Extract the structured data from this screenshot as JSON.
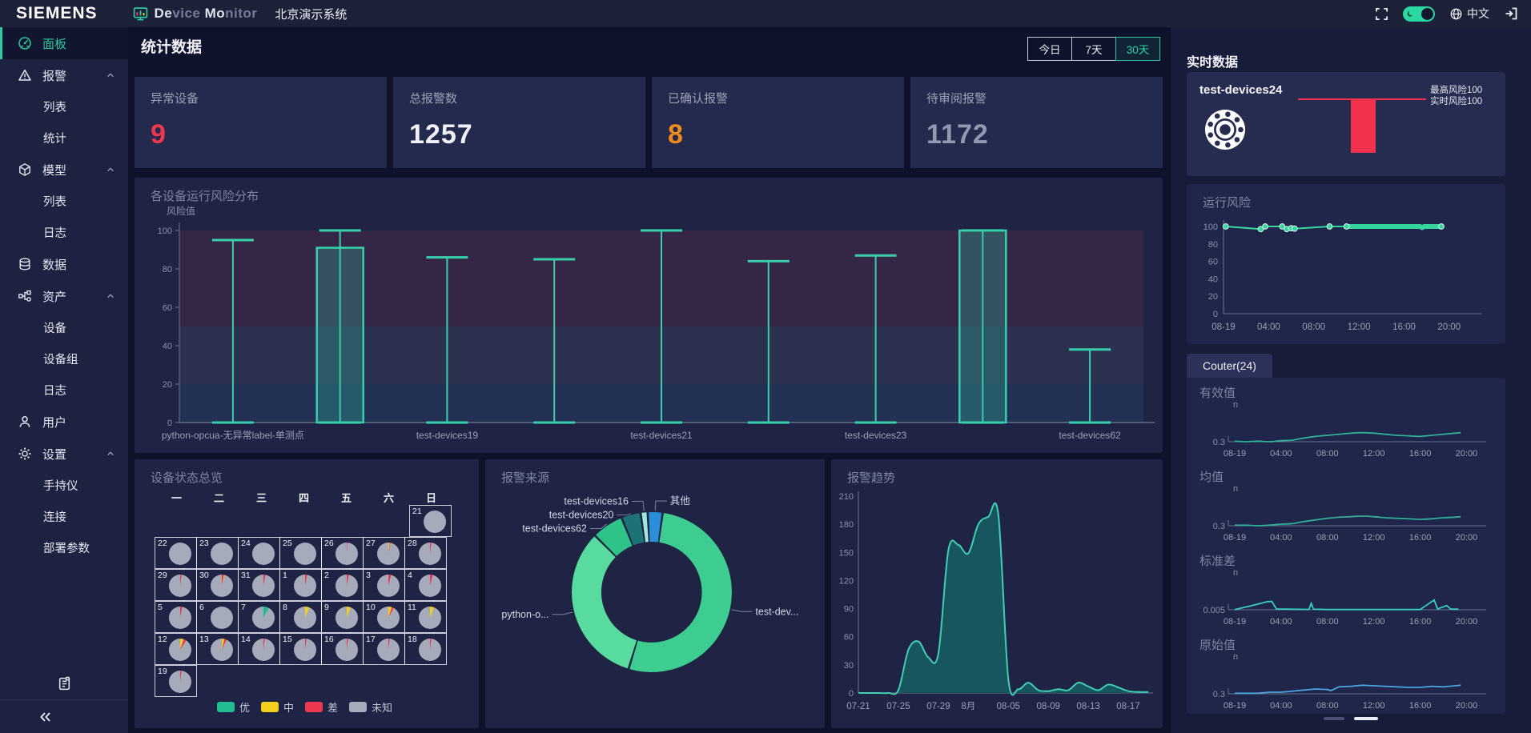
{
  "topbar": {
    "brand": "SIEMENS",
    "device_monitor": {
      "strong_a": "De",
      "dim_a": "vice ",
      "strong_b": "Mo",
      "dim_b": "nitor"
    },
    "system_name": "北京演示系统",
    "language_label": "中文"
  },
  "sidebar": {
    "items": [
      {
        "id": "panel",
        "label": "面板",
        "icon": "gauge-icon",
        "active": true
      },
      {
        "id": "alarm",
        "label": "报警",
        "icon": "alert-icon",
        "expanded": true,
        "children": [
          "列表",
          "统计"
        ]
      },
      {
        "id": "model",
        "label": "模型",
        "icon": "cube-icon",
        "expanded": true,
        "children": [
          "列表",
          "日志"
        ]
      },
      {
        "id": "data",
        "label": "数据",
        "icon": "database-icon"
      },
      {
        "id": "asset",
        "label": "资产",
        "icon": "nodes-icon",
        "expanded": true,
        "children": [
          "设备",
          "设备组",
          "日志"
        ]
      },
      {
        "id": "user",
        "label": "用户",
        "icon": "user-icon"
      },
      {
        "id": "settings",
        "label": "设置",
        "icon": "gear-icon",
        "expanded": true,
        "children": [
          "手持仪",
          "连接",
          "部署参数"
        ]
      }
    ]
  },
  "main": {
    "section_title": "统计数据",
    "range_buttons": [
      {
        "label": "今日",
        "active": false
      },
      {
        "label": "7天",
        "active": false
      },
      {
        "label": "30天",
        "active": true
      }
    ],
    "stat_cards": [
      {
        "label": "异常设备",
        "value": "9",
        "color": "#f0374e"
      },
      {
        "label": "总报警数",
        "value": "1257",
        "color": "#eef1f8"
      },
      {
        "label": "已确认报警",
        "value": "8",
        "color": "#f08c1f"
      },
      {
        "label": "待审阅报警",
        "value": "1172",
        "color": "#9298ad"
      }
    ]
  },
  "right_panel": {
    "heading": "实时数据",
    "device_name": "test-devices24",
    "max_risk_label": "最高风险100",
    "live_risk_label": "实时风险100",
    "risk_color": "#f0324c",
    "tab_label": "Couter(24)"
  },
  "chart_data": [
    {
      "id": "risk-distribution",
      "type": "boxplot",
      "title": "各设备运行风险分布",
      "ylabel": "风险值",
      "ylim": [
        0,
        100
      ],
      "yticks": [
        0,
        20,
        40,
        60,
        80,
        100
      ],
      "categories": [
        "python-opcua-无异常label-单测点",
        "",
        "test-devices19",
        "",
        "test-devices21",
        "",
        "test-devices23",
        "",
        "test-devices62"
      ],
      "items": [
        {
          "max": 95,
          "body": [
            0,
            0
          ]
        },
        {
          "max": 100,
          "body": [
            0,
            91
          ]
        },
        {
          "max": 86,
          "body": [
            0,
            0
          ]
        },
        {
          "max": 85,
          "body": [
            0,
            0
          ]
        },
        {
          "max": 100,
          "body": [
            0,
            0
          ]
        },
        {
          "max": 84,
          "body": [
            0,
            0
          ]
        },
        {
          "max": 87,
          "body": [
            0,
            0
          ]
        },
        {
          "max": 100,
          "body": [
            0,
            100
          ]
        },
        {
          "max": 38,
          "body": [
            0,
            0
          ]
        }
      ],
      "bands": [
        {
          "from": 50,
          "to": 100,
          "color": "rgba(226,56,82,0.12)"
        },
        {
          "from": 20,
          "to": 50,
          "color": "rgba(168,168,190,0.10)"
        },
        {
          "from": 0,
          "to": 20,
          "color": "rgba(60,140,190,0.13)"
        }
      ],
      "color": "#38d0ac"
    },
    {
      "id": "device-status-calendar",
      "type": "calendar-pie",
      "title": "设备状态总览",
      "weekdays": [
        "一",
        "二",
        "三",
        "四",
        "五",
        "六",
        "日"
      ],
      "legend": [
        {
          "label": "优",
          "color": "#1fbf92"
        },
        {
          "label": "中",
          "color": "#f2cf1d"
        },
        {
          "label": "差",
          "color": "#ef3850"
        },
        {
          "label": "未知",
          "color": "#a6abbc"
        }
      ],
      "weeks": [
        [
          null,
          null,
          null,
          null,
          null,
          null,
          {
            "day": 21,
            "slices": []
          }
        ],
        [
          {
            "day": 22,
            "slices": []
          },
          {
            "day": 23,
            "slices": []
          },
          {
            "day": 24,
            "slices": []
          },
          {
            "day": 25,
            "slices": []
          },
          {
            "day": 26,
            "slices": [
              [
                "差",
                1
              ]
            ]
          },
          {
            "day": 27,
            "slices": [
              [
                "中",
                2
              ],
              [
                "差",
                1
              ]
            ]
          },
          {
            "day": 28,
            "slices": [
              [
                "差",
                2
              ]
            ]
          }
        ],
        [
          {
            "day": 29,
            "slices": [
              [
                "差",
                2
              ]
            ]
          },
          {
            "day": 30,
            "slices": [
              [
                "差",
                3
              ],
              [
                "中",
                1
              ]
            ]
          },
          {
            "day": 31,
            "slices": [
              [
                "差",
                3
              ]
            ]
          },
          {
            "day": 1,
            "slices": [
              [
                "差",
                3
              ]
            ]
          },
          {
            "day": 2,
            "slices": [
              [
                "差",
                3
              ]
            ]
          },
          {
            "day": 3,
            "slices": [
              [
                "差",
                4
              ]
            ]
          },
          {
            "day": 4,
            "slices": [
              [
                "差",
                4
              ]
            ]
          }
        ],
        [
          {
            "day": 5,
            "slices": [
              [
                "差",
                3
              ]
            ]
          },
          {
            "day": 6,
            "slices": []
          },
          {
            "day": 7,
            "slices": [
              [
                "优",
                8
              ]
            ]
          },
          {
            "day": 8,
            "slices": [
              [
                "中",
                6
              ]
            ]
          },
          {
            "day": 9,
            "slices": [
              [
                "中",
                6
              ]
            ]
          },
          {
            "day": 10,
            "slices": [
              [
                "中",
                5
              ],
              [
                "差",
                3
              ]
            ]
          },
          {
            "day": 11,
            "slices": [
              [
                "中",
                6
              ]
            ]
          }
        ],
        [
          {
            "day": 12,
            "slices": [
              [
                "中",
                5
              ],
              [
                "差",
                4
              ]
            ]
          },
          {
            "day": 13,
            "slices": [
              [
                "中",
                4
              ],
              [
                "差",
                3
              ]
            ]
          },
          {
            "day": 14,
            "slices": [
              [
                "差",
                2
              ]
            ]
          },
          {
            "day": 15,
            "slices": [
              [
                "差",
                2
              ]
            ]
          },
          {
            "day": 16,
            "slices": [
              [
                "差",
                2
              ]
            ]
          },
          {
            "day": 17,
            "slices": [
              [
                "差",
                2
              ]
            ]
          },
          {
            "day": 18,
            "slices": [
              [
                "差",
                2
              ]
            ]
          }
        ],
        [
          {
            "day": 19,
            "slices": [
              [
                "差",
                2
              ]
            ]
          },
          null,
          null,
          null,
          null,
          null,
          null
        ]
      ]
    },
    {
      "id": "alarm-source",
      "type": "pie",
      "donut": true,
      "start_angle": -93,
      "title": "报警来源",
      "slices": [
        {
          "label": "其他",
          "value": 3,
          "color": "#2b8ed8"
        },
        {
          "label": "test-dev...",
          "value": 52.5,
          "color": "#3dcd90"
        },
        {
          "label": "python-o...",
          "value": 32.8,
          "color": "#57db9e"
        },
        {
          "label": "test-devices62",
          "value": 6.4,
          "color": "#2fc487"
        },
        {
          "label": "test-devices20",
          "value": 3.9,
          "color": "#1b7376"
        },
        {
          "label": "test-devices16",
          "value": 1.4,
          "color": "#9fe8da"
        }
      ]
    },
    {
      "id": "alarm-trend",
      "type": "area",
      "title": "报警趋势",
      "ylim": [
        0,
        210
      ],
      "yticks": [
        0,
        30,
        60,
        90,
        120,
        150,
        180,
        210
      ],
      "x_labels": [
        {
          "label": "07-21",
          "day": 0
        },
        {
          "label": "07-25",
          "day": 4
        },
        {
          "label": "07-29",
          "day": 8
        },
        {
          "label": "8月",
          "day": 11
        },
        {
          "label": "08-05",
          "day": 15
        },
        {
          "label": "08-09",
          "day": 19
        },
        {
          "label": "08-13",
          "day": 23
        },
        {
          "label": "08-17",
          "day": 27
        }
      ],
      "values": [
        0,
        0,
        0,
        0,
        3,
        46,
        55,
        38,
        42,
        152,
        158,
        149,
        180,
        188,
        190,
        15,
        4,
        11,
        3,
        2,
        4,
        3,
        11,
        7,
        3,
        9,
        6,
        2,
        1,
        1
      ],
      "line_color": "#3fd0b4",
      "fill_color": "#17565f"
    },
    {
      "id": "realtime-risk",
      "type": "line",
      "title": "运行风险",
      "ylim": [
        0,
        100
      ],
      "yticks": [
        0,
        20,
        40,
        60,
        80,
        100
      ],
      "x_labels": [
        {
          "label": "08-19",
          "h": 0
        },
        {
          "label": "04:00",
          "h": 4
        },
        {
          "label": "08:00",
          "h": 8
        },
        {
          "label": "12:00",
          "h": 12
        },
        {
          "label": "16:00",
          "h": 16
        },
        {
          "label": "20:00",
          "h": 20
        }
      ],
      "points": [
        [
          0.2,
          100
        ],
        [
          3.3,
          97
        ],
        [
          3.7,
          100
        ],
        [
          5.2,
          100
        ],
        [
          5.6,
          97
        ],
        [
          6.0,
          98
        ],
        [
          6.3,
          97.5
        ],
        [
          9.4,
          100
        ],
        [
          10.9,
          100
        ],
        [
          17.4,
          100
        ],
        [
          17.6,
          98.7
        ],
        [
          17.8,
          100
        ],
        [
          19.3,
          100
        ]
      ],
      "dense_segment": [
        10.9,
        19.3
      ],
      "color": "#35d69e"
    },
    {
      "id": "metric-minis",
      "type": "line-group",
      "x_labels": [
        {
          "label": "08-19",
          "h": 0
        },
        {
          "label": "04:00",
          "h": 4
        },
        {
          "label": "08:00",
          "h": 8
        },
        {
          "label": "12:00",
          "h": 12
        },
        {
          "label": "16:00",
          "h": 16
        },
        {
          "label": "20:00",
          "h": 20
        }
      ],
      "charts": [
        {
          "title": "有效值",
          "ylabel": "n",
          "ytick": "0.3",
          "ymin": 0.3,
          "ymax": 0.9,
          "smooth": true,
          "color": "#2fae9b",
          "points": [
            [
              0,
              0.31
            ],
            [
              1,
              0.3
            ],
            [
              2,
              0.31
            ],
            [
              3,
              0.3
            ],
            [
              4,
              0.32
            ],
            [
              5,
              0.33
            ],
            [
              6,
              0.37
            ],
            [
              7,
              0.4
            ],
            [
              8,
              0.42
            ],
            [
              9,
              0.44
            ],
            [
              10,
              0.46
            ],
            [
              11,
              0.47
            ],
            [
              12,
              0.46
            ],
            [
              13,
              0.44
            ],
            [
              14,
              0.42
            ],
            [
              15,
              0.41
            ],
            [
              16,
              0.4
            ],
            [
              17,
              0.42
            ],
            [
              18,
              0.44
            ],
            [
              19,
              0.46
            ],
            [
              19.5,
              0.47
            ]
          ]
        },
        {
          "title": "均值",
          "ylabel": "n",
          "ytick": "0.3",
          "ymin": 0.3,
          "ymax": 0.9,
          "smooth": true,
          "color": "#2fae9b",
          "points": [
            [
              0,
              0.31
            ],
            [
              1,
              0.31
            ],
            [
              2,
              0.3
            ],
            [
              3,
              0.31
            ],
            [
              4,
              0.33
            ],
            [
              5,
              0.34
            ],
            [
              6,
              0.38
            ],
            [
              7,
              0.41
            ],
            [
              8,
              0.44
            ],
            [
              9,
              0.46
            ],
            [
              10,
              0.47
            ],
            [
              11,
              0.48
            ],
            [
              12,
              0.47
            ],
            [
              13,
              0.45
            ],
            [
              14,
              0.44
            ],
            [
              15,
              0.43
            ],
            [
              16,
              0.42
            ],
            [
              17,
              0.43
            ],
            [
              18,
              0.45
            ],
            [
              19,
              0.46
            ],
            [
              19.5,
              0.47
            ]
          ]
        },
        {
          "title": "标准差",
          "ylabel": "n",
          "ytick": "0.005",
          "ymin": 0.005,
          "ymax": 0.12,
          "smooth": false,
          "color": "#35d0c0",
          "points": [
            [
              0,
              0.006
            ],
            [
              1.5,
              0.02
            ],
            [
              2.8,
              0.034
            ],
            [
              3.2,
              0.035
            ],
            [
              3.6,
              0.008
            ],
            [
              5,
              0.007
            ],
            [
              6.4,
              0.006
            ],
            [
              6.6,
              0.028
            ],
            [
              6.8,
              0.007
            ],
            [
              8,
              0.006
            ],
            [
              10,
              0.006
            ],
            [
              12,
              0.006
            ],
            [
              14,
              0.006
            ],
            [
              16,
              0.006
            ],
            [
              17.2,
              0.04
            ],
            [
              17.5,
              0.008
            ],
            [
              18.3,
              0.02
            ],
            [
              18.6,
              0.008
            ],
            [
              19.3,
              0.007
            ]
          ]
        },
        {
          "title": "原始值",
          "ylabel": "n",
          "ytick": "0.3",
          "ymin": 0.3,
          "ymax": 0.9,
          "smooth": false,
          "color": "#4aa2dd",
          "points": [
            [
              0,
              0.31
            ],
            [
              2,
              0.31
            ],
            [
              3,
              0.33
            ],
            [
              4,
              0.33
            ],
            [
              5,
              0.35
            ],
            [
              6,
              0.37
            ],
            [
              7,
              0.39
            ],
            [
              8,
              0.38
            ],
            [
              8.3,
              0.36
            ],
            [
              9,
              0.43
            ],
            [
              10,
              0.44
            ],
            [
              11,
              0.46
            ],
            [
              12,
              0.45
            ],
            [
              13,
              0.44
            ],
            [
              14,
              0.43
            ],
            [
              15,
              0.42
            ],
            [
              16,
              0.42
            ],
            [
              17,
              0.44
            ],
            [
              18,
              0.43
            ],
            [
              19,
              0.45
            ],
            [
              19.5,
              0.46
            ]
          ]
        }
      ],
      "pagination": {
        "count": 2,
        "active": 1
      }
    }
  ]
}
